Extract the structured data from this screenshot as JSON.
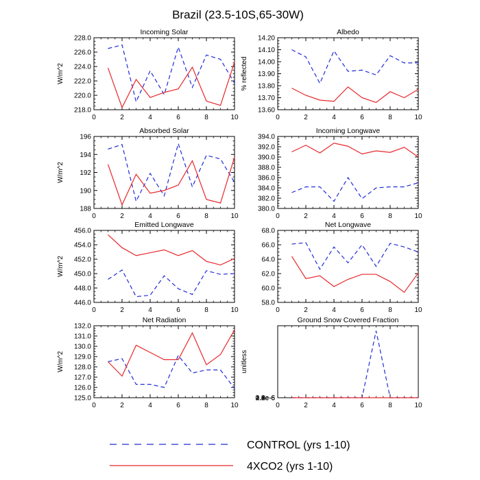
{
  "figure": {
    "title": "Brazil (23.5-10S,65-30W)"
  },
  "legend": [
    {
      "label": "CONTROL (yrs 1-10)",
      "color": "#1f2bd8",
      "style": "dashed"
    },
    {
      "label": "4XCO2 (yrs 1-10)",
      "color": "#e8262a",
      "style": "solid"
    }
  ],
  "chart_data": [
    {
      "type": "line",
      "title": "Incoming Solar",
      "ylabel": "W/m^2",
      "xlim": [
        0,
        10
      ],
      "ylim": [
        218,
        228
      ],
      "xticks": [
        "0",
        "2",
        "4",
        "6",
        "8",
        "10"
      ],
      "yticks": [
        "218.0",
        "220.0",
        "222.0",
        "224.0",
        "226.0",
        "228.0"
      ],
      "x": [
        1,
        2,
        3,
        4,
        5,
        6,
        7,
        8,
        9,
        10
      ],
      "series": [
        {
          "name": "CONTROL (yrs 1-10)",
          "values": [
            226.5,
            227.0,
            219.1,
            223.4,
            220.1,
            226.7,
            221.1,
            225.6,
            225.0,
            221.7
          ]
        },
        {
          "name": "4XCO2 (yrs 1-10)",
          "values": [
            223.8,
            218.3,
            222.2,
            219.7,
            220.4,
            220.9,
            223.9,
            219.2,
            218.6,
            224.6
          ]
        }
      ]
    },
    {
      "type": "line",
      "title": "Albedo",
      "ylabel": "% reflected",
      "xlim": [
        0,
        10
      ],
      "ylim": [
        13.6,
        14.2
      ],
      "xticks": [
        "0",
        "2",
        "4",
        "6",
        "8",
        "10"
      ],
      "yticks": [
        "13.60",
        "13.70",
        "13.80",
        "13.90",
        "14.00",
        "14.10",
        "14.20"
      ],
      "x": [
        1,
        2,
        3,
        4,
        5,
        6,
        7,
        8,
        9,
        10
      ],
      "series": [
        {
          "name": "CONTROL (yrs 1-10)",
          "values": [
            14.1,
            14.04,
            13.82,
            14.09,
            13.92,
            13.93,
            13.89,
            14.05,
            13.99,
            13.99
          ]
        },
        {
          "name": "4XCO2 (yrs 1-10)",
          "values": [
            13.78,
            13.72,
            13.68,
            13.67,
            13.79,
            13.7,
            13.66,
            13.75,
            13.7,
            13.77
          ]
        }
      ]
    },
    {
      "type": "line",
      "title": "Absorbed Solar",
      "ylabel": "W/m^2",
      "xlim": [
        0,
        10
      ],
      "ylim": [
        188,
        196
      ],
      "xticks": [
        "0",
        "2",
        "4",
        "6",
        "8",
        "10"
      ],
      "yticks": [
        "188",
        "190",
        "192",
        "194",
        "196"
      ],
      "x": [
        1,
        2,
        3,
        4,
        5,
        6,
        7,
        8,
        9,
        10
      ],
      "series": [
        {
          "name": "CONTROL (yrs 1-10)",
          "values": [
            194.6,
            195.1,
            188.8,
            191.9,
            189.4,
            195.2,
            190.4,
            193.9,
            193.5,
            190.9
          ]
        },
        {
          "name": "4XCO2 (yrs 1-10)",
          "values": [
            192.9,
            188.4,
            191.8,
            189.7,
            190.0,
            190.6,
            193.3,
            189.0,
            188.6,
            193.7
          ]
        }
      ]
    },
    {
      "type": "line",
      "title": "Incoming Longwave",
      "ylabel": "",
      "xlim": [
        0,
        10
      ],
      "ylim": [
        380,
        394
      ],
      "xticks": [
        "0",
        "2",
        "4",
        "6",
        "8",
        "10"
      ],
      "yticks": [
        "380.0",
        "382.0",
        "384.0",
        "386.0",
        "388.0",
        "390.0",
        "392.0",
        "394.0"
      ],
      "x": [
        1,
        2,
        3,
        4,
        5,
        6,
        7,
        8,
        9,
        10
      ],
      "series": [
        {
          "name": "CONTROL (yrs 1-10)",
          "values": [
            383.1,
            384.2,
            384.2,
            381.4,
            386.0,
            381.9,
            384.0,
            384.2,
            384.2,
            385.0
          ]
        },
        {
          "name": "4XCO2 (yrs 1-10)",
          "values": [
            391.0,
            392.3,
            390.8,
            392.7,
            392.1,
            390.6,
            391.2,
            390.9,
            391.9,
            390.0
          ]
        }
      ]
    },
    {
      "type": "line",
      "title": "Emitted Longwave",
      "ylabel": "W/m^2",
      "xlim": [
        0,
        10
      ],
      "ylim": [
        446,
        456
      ],
      "xticks": [
        "0",
        "2",
        "4",
        "6",
        "8",
        "10"
      ],
      "yticks": [
        "446.0",
        "448.0",
        "450.0",
        "452.0",
        "454.0",
        "456.0"
      ],
      "x": [
        1,
        2,
        3,
        4,
        5,
        6,
        7,
        8,
        9,
        10
      ],
      "series": [
        {
          "name": "CONTROL (yrs 1-10)",
          "values": [
            449.2,
            450.5,
            446.8,
            447.0,
            449.7,
            447.9,
            447.1,
            450.4,
            449.9,
            450.0
          ]
        },
        {
          "name": "4XCO2 (yrs 1-10)",
          "values": [
            455.4,
            453.6,
            452.5,
            452.9,
            453.3,
            452.5,
            453.2,
            451.7,
            451.2,
            452.1
          ]
        }
      ]
    },
    {
      "type": "line",
      "title": "Net Longwave",
      "ylabel": "",
      "xlim": [
        0,
        10
      ],
      "ylim": [
        58,
        68
      ],
      "xticks": [
        "0",
        "2",
        "4",
        "6",
        "8",
        "10"
      ],
      "yticks": [
        "58.0",
        "60.0",
        "62.0",
        "64.0",
        "66.0",
        "68.0"
      ],
      "x": [
        1,
        2,
        3,
        4,
        5,
        6,
        7,
        8,
        9,
        10
      ],
      "series": [
        {
          "name": "CONTROL (yrs 1-10)",
          "values": [
            66.1,
            66.3,
            62.6,
            65.7,
            63.5,
            66.0,
            63.0,
            66.2,
            65.7,
            65.0
          ]
        },
        {
          "name": "4XCO2 (yrs 1-10)",
          "values": [
            64.4,
            61.3,
            61.7,
            60.2,
            61.2,
            61.9,
            61.9,
            60.9,
            59.4,
            62.1
          ]
        }
      ]
    },
    {
      "type": "line",
      "title": "Net Radiation",
      "ylabel": "W/m^2",
      "xlim": [
        0,
        10
      ],
      "ylim": [
        125,
        132
      ],
      "xticks": [
        "0",
        "2",
        "4",
        "6",
        "8",
        "10"
      ],
      "yticks": [
        "125.0",
        "126.0",
        "127.0",
        "128.0",
        "129.0",
        "130.0",
        "131.0",
        "132.0"
      ],
      "x": [
        1,
        2,
        3,
        4,
        5,
        6,
        7,
        8,
        9,
        10
      ],
      "series": [
        {
          "name": "CONTROL (yrs 1-10)",
          "values": [
            128.5,
            128.8,
            126.3,
            126.3,
            126.0,
            129.1,
            127.4,
            127.7,
            127.7,
            125.9
          ]
        },
        {
          "name": "4XCO2 (yrs 1-10)",
          "values": [
            128.5,
            127.1,
            130.1,
            129.4,
            128.7,
            128.7,
            131.3,
            128.2,
            129.2,
            131.6
          ]
        }
      ]
    },
    {
      "type": "line",
      "title": "Ground Snow Covered Fraction",
      "ylabel": "unitless",
      "xlim": [
        0,
        10
      ],
      "ylim": [
        0,
        2.8e-06
      ],
      "xticks": [
        "0",
        "2",
        "4",
        "6",
        "8",
        "10"
      ],
      "yticks": [
        "0.0e-6",
        "0.4e-6",
        "0.8e-6",
        "1.2e-6",
        "1.6e-6",
        "2.0e-6",
        "2.4e-6",
        "2.8e-6"
      ],
      "x": [
        1,
        2,
        3,
        4,
        5,
        6,
        7,
        8,
        9,
        10
      ],
      "series": [
        {
          "name": "CONTROL (yrs 1-10)",
          "values": [
            0,
            0,
            0,
            0,
            0,
            0,
            2.6e-06,
            0,
            0,
            0
          ]
        },
        {
          "name": "4XCO2 (yrs 1-10)",
          "values": [
            0,
            0,
            0,
            0,
            0,
            0,
            0,
            0,
            0,
            0
          ]
        }
      ]
    }
  ]
}
